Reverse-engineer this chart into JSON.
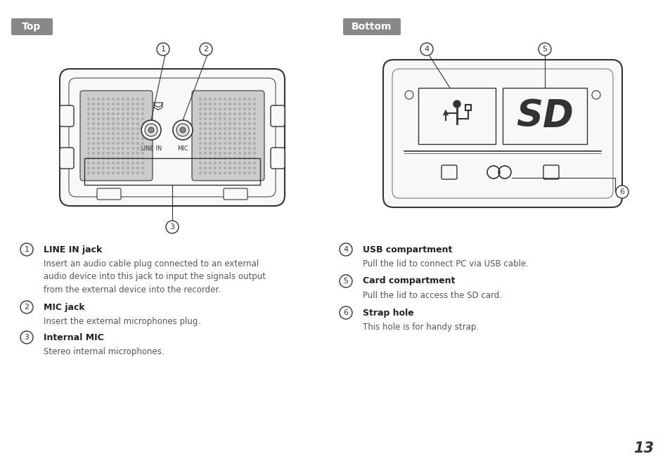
{
  "bg_color": "#ffffff",
  "label_bg": "#888888",
  "label_text": "#ffffff",
  "top_label": "Top",
  "bottom_label": "Bottom",
  "item1_title": "LINE IN jack",
  "item1_desc": "Insert an audio cable plug connected to an external\naudio device into this jack to input the signals output\nfrom the external device into the recorder.",
  "item2_title": "MIC jack",
  "item2_desc": "Insert the external microphones plug.",
  "item3_title": "Internal MIC",
  "item3_desc": "Stereo internal microphones.",
  "item4_title": "USB compartment",
  "item4_desc": "Pull the lid to connect PC via USB cable.",
  "item5_title": "Card compartment",
  "item5_desc": "Pull the lid to access the SD card.",
  "item6_title": "Strap hole",
  "item6_desc": "This hole is for handy strap.",
  "page_number": "13",
  "body_color": "#f8f8f8",
  "outline_color": "#333333",
  "grille_color": "#cccccc",
  "dot_color": "#aaaaaa"
}
